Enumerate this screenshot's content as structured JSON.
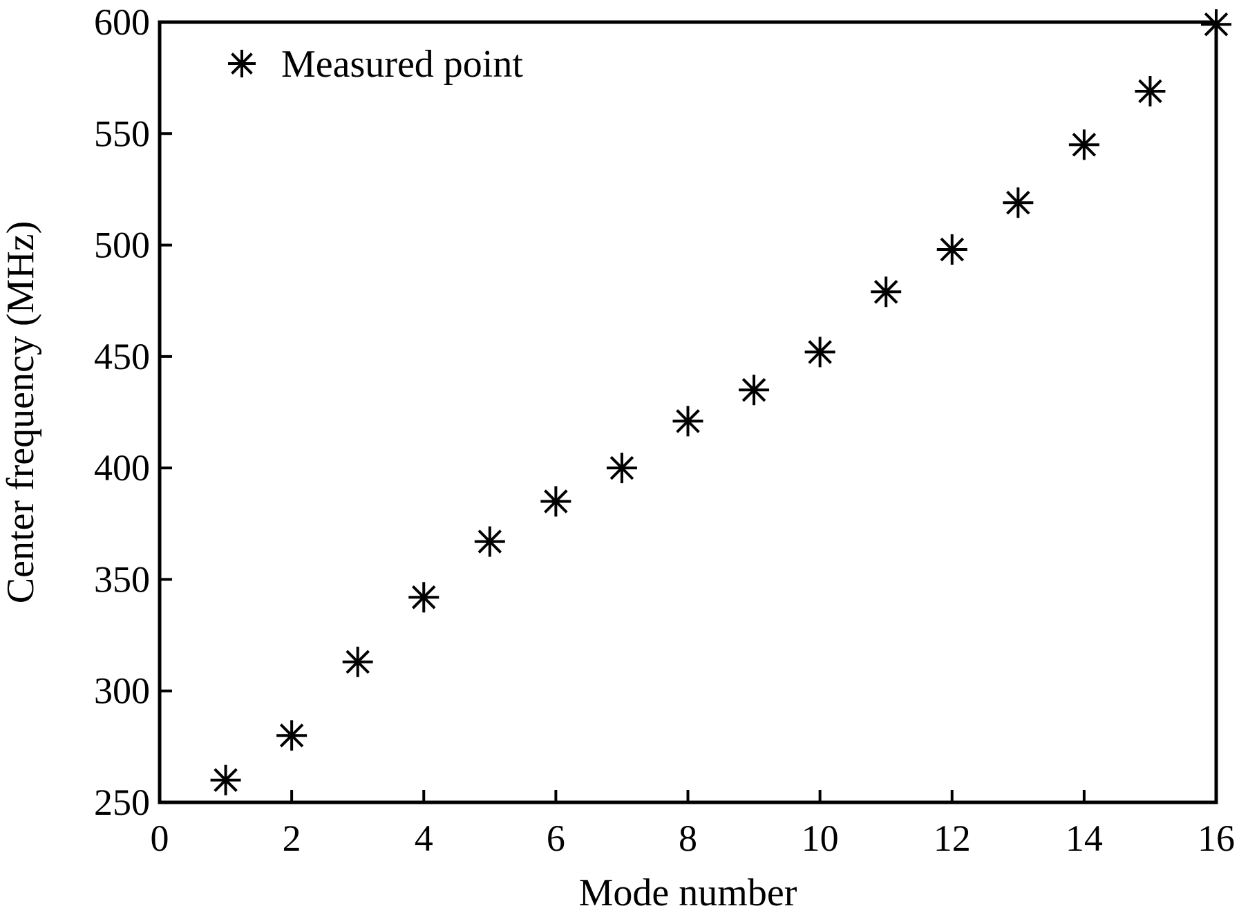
{
  "chart_data": {
    "type": "scatter",
    "title": "",
    "xlabel": "Mode number",
    "ylabel": "Center frequency (MHz)",
    "xlim": [
      0,
      16
    ],
    "ylim": [
      250,
      600
    ],
    "xticks": [
      0,
      2,
      4,
      6,
      8,
      10,
      12,
      14,
      16
    ],
    "yticks": [
      250,
      300,
      350,
      400,
      450,
      500,
      550,
      600
    ],
    "xtick_labels": [
      "0",
      "2",
      "4",
      "6",
      "8",
      "10",
      "12",
      "14",
      "16"
    ],
    "ytick_labels": [
      "250",
      "300",
      "350",
      "400",
      "450",
      "500",
      "550",
      "600"
    ],
    "grid": false,
    "legend_position": "top-left",
    "series": [
      {
        "name": "Measured point",
        "marker": "asterisk",
        "color": "#000000",
        "x": [
          1,
          2,
          3,
          4,
          5,
          6,
          7,
          8,
          9,
          10,
          11,
          12,
          13,
          14,
          15,
          16
        ],
        "y": [
          260,
          280,
          313,
          342,
          367,
          385,
          400,
          421,
          435,
          452,
          479,
          498,
          519,
          545,
          569,
          599
        ]
      }
    ]
  }
}
